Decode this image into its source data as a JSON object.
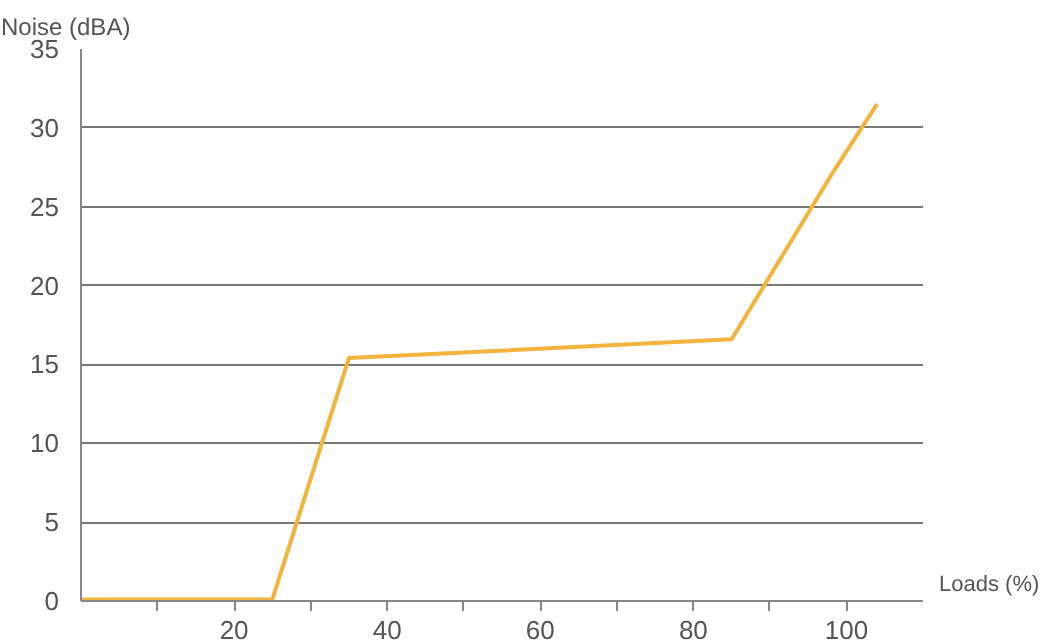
{
  "chart_data": {
    "type": "line",
    "xlabel": "Loads (%)",
    "ylabel": "Noise (dBA)",
    "x": [
      0,
      25,
      35,
      85,
      98,
      104
    ],
    "series": [
      {
        "color": "#f2b43c",
        "values": [
          0.1,
          0.1,
          15.4,
          16.6,
          27,
          31.5
        ]
      }
    ],
    "xlim": [
      0,
      110
    ],
    "ylim": [
      0,
      35
    ],
    "xticks": [
      {
        "value": 10,
        "label": null
      },
      20,
      {
        "value": 30,
        "label": null
      },
      40,
      {
        "value": 50,
        "label": null
      },
      60,
      {
        "value": 70,
        "label": null
      },
      80,
      {
        "value": 90,
        "label": null
      },
      100
    ],
    "yticks": [
      0,
      5,
      10,
      15,
      20,
      25,
      30,
      35
    ],
    "grid": "y",
    "marker": "none",
    "line_style": "solid"
  }
}
